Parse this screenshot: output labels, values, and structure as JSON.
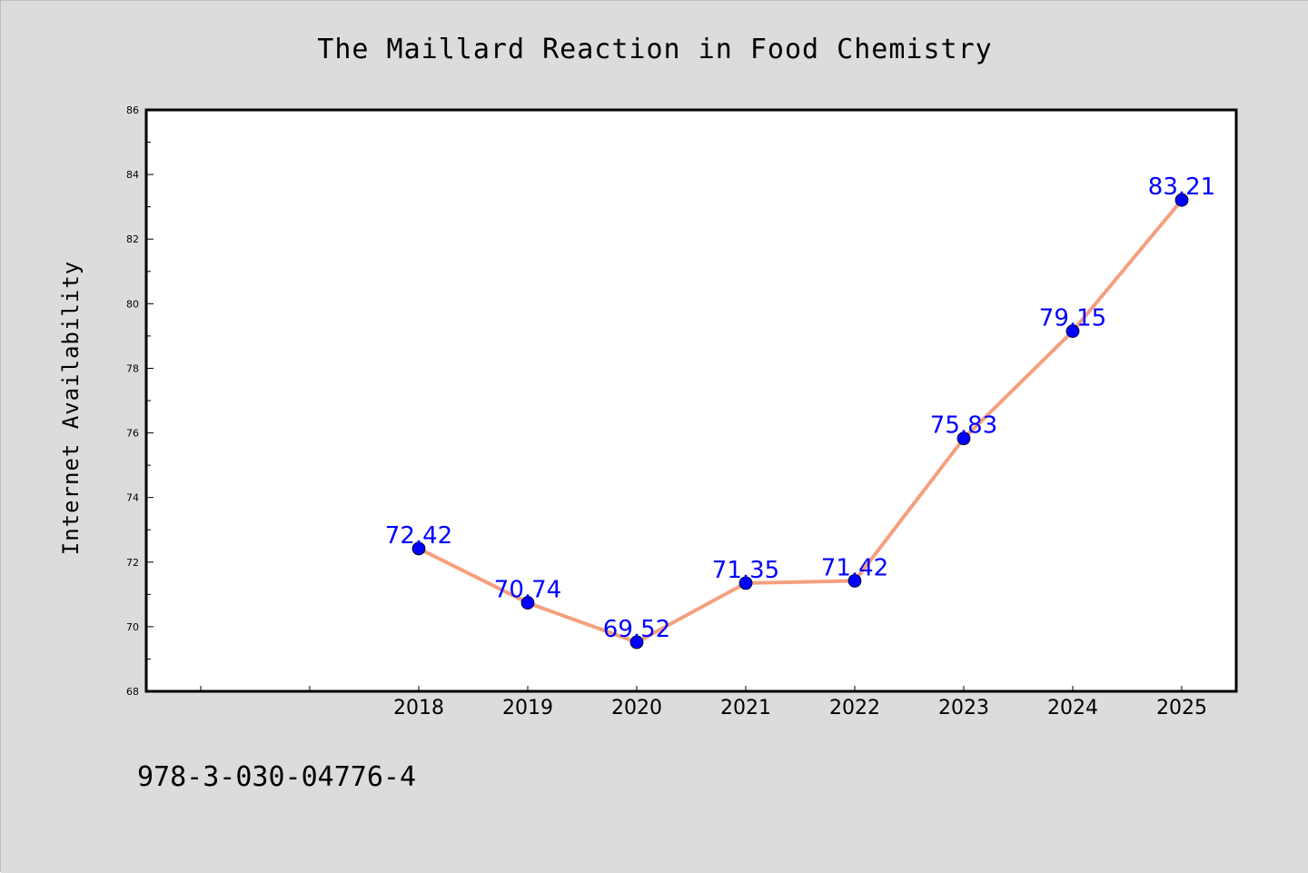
{
  "chart_data": {
    "type": "line",
    "title": "The Maillard Reaction in Food Chemistry",
    "xlabel": "",
    "ylabel": "Internet Availability",
    "categories": [
      "2018",
      "2019",
      "2020",
      "2021",
      "2022",
      "2023",
      "2024",
      "2025"
    ],
    "series": [
      {
        "values": [
          72.42,
          70.74,
          69.52,
          71.35,
          71.42,
          75.83,
          79.15,
          83.21
        ]
      }
    ],
    "data_labels": [
      "72.42",
      "70.74",
      "69.52",
      "71.35",
      "71.42",
      "75.83",
      "79.15",
      "83.21"
    ],
    "ylim": [
      68,
      86
    ],
    "yticks": [
      "68",
      "70",
      "72",
      "74",
      "76",
      "78",
      "80",
      "82",
      "84",
      "86"
    ],
    "line_color": "#f4a07e",
    "marker_color": "#0000ff",
    "label_color": "#0000ff",
    "grid": false,
    "legend": "none"
  },
  "footer_text": "978-3-030-04776-4",
  "colors": {
    "figure_background": "#dcdcdc",
    "plot_background": "#ffffff"
  }
}
